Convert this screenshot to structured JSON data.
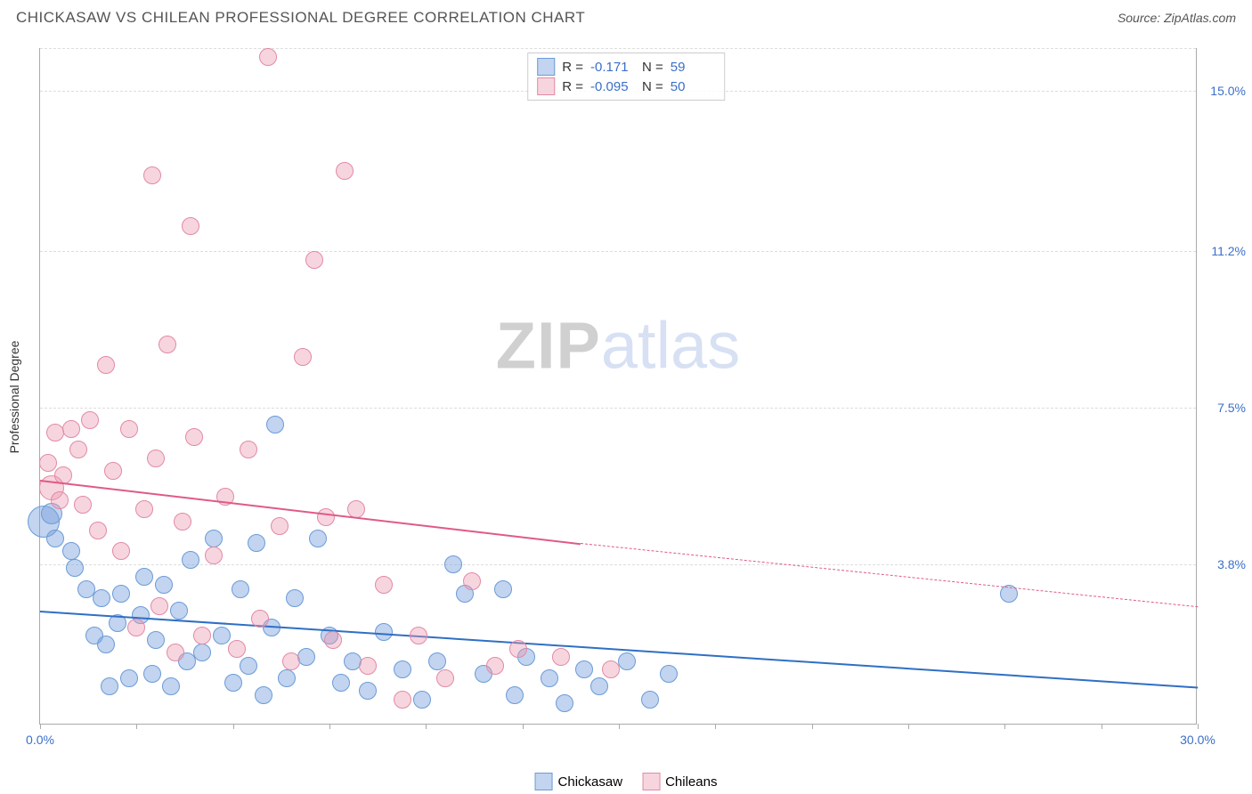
{
  "header": {
    "title": "CHICKASAW VS CHILEAN PROFESSIONAL DEGREE CORRELATION CHART",
    "source_prefix": "Source: ",
    "source_name": "ZipAtlas.com"
  },
  "watermark": {
    "zip": "ZIP",
    "atlas": "atlas"
  },
  "axes": {
    "ylabel": "Professional Degree",
    "xlim": [
      0,
      30
    ],
    "ylim": [
      0,
      16
    ],
    "x_ticks": [
      0,
      2.5,
      5,
      7.5,
      10,
      12.5,
      15,
      17.5,
      20,
      22.5,
      25,
      27.5,
      30
    ],
    "x_tick_labels": {
      "0": "0.0%",
      "30": "30.0%"
    },
    "y_grid": [
      {
        "v": 3.8,
        "label": "3.8%"
      },
      {
        "v": 7.5,
        "label": "7.5%"
      },
      {
        "v": 11.2,
        "label": "11.2%"
      },
      {
        "v": 15.0,
        "label": "15.0%"
      }
    ],
    "grid_color": "#dddddd",
    "border_color": "#aaaaaa"
  },
  "series": [
    {
      "name": "Chickasaw",
      "color_fill": "rgba(120,160,220,0.45)",
      "color_stroke": "#6b9bd8",
      "trend_color": "#2f6fc4",
      "stats": {
        "R": "-0.171",
        "N": "59"
      },
      "trend_solid": {
        "x1": 0,
        "y1": 2.7,
        "x2": 30,
        "y2": 0.9
      },
      "marker_radius": 10,
      "points": [
        [
          0.1,
          4.8,
          18
        ],
        [
          0.3,
          5.0,
          12
        ],
        [
          0.4,
          4.4,
          10
        ],
        [
          0.8,
          4.1,
          10
        ],
        [
          0.9,
          3.7,
          10
        ],
        [
          1.2,
          3.2,
          10
        ],
        [
          1.4,
          2.1,
          10
        ],
        [
          1.6,
          3.0,
          10
        ],
        [
          1.7,
          1.9,
          10
        ],
        [
          1.8,
          0.9,
          10
        ],
        [
          2.0,
          2.4,
          10
        ],
        [
          2.1,
          3.1,
          10
        ],
        [
          2.3,
          1.1,
          10
        ],
        [
          2.6,
          2.6,
          10
        ],
        [
          2.7,
          3.5,
          10
        ],
        [
          2.9,
          1.2,
          10
        ],
        [
          3.0,
          2.0,
          10
        ],
        [
          3.2,
          3.3,
          10
        ],
        [
          3.4,
          0.9,
          10
        ],
        [
          3.6,
          2.7,
          10
        ],
        [
          3.8,
          1.5,
          10
        ],
        [
          3.9,
          3.9,
          10
        ],
        [
          4.2,
          1.7,
          10
        ],
        [
          4.5,
          4.4,
          10
        ],
        [
          4.7,
          2.1,
          10
        ],
        [
          5.0,
          1.0,
          10
        ],
        [
          5.2,
          3.2,
          10
        ],
        [
          5.4,
          1.4,
          10
        ],
        [
          5.6,
          4.3,
          10
        ],
        [
          5.8,
          0.7,
          10
        ],
        [
          6.0,
          2.3,
          10
        ],
        [
          6.1,
          7.1,
          10
        ],
        [
          6.4,
          1.1,
          10
        ],
        [
          6.6,
          3.0,
          10
        ],
        [
          6.9,
          1.6,
          10
        ],
        [
          7.2,
          4.4,
          10
        ],
        [
          7.5,
          2.1,
          10
        ],
        [
          7.8,
          1.0,
          10
        ],
        [
          8.1,
          1.5,
          10
        ],
        [
          8.5,
          0.8,
          10
        ],
        [
          8.9,
          2.2,
          10
        ],
        [
          9.4,
          1.3,
          10
        ],
        [
          9.9,
          0.6,
          10
        ],
        [
          10.3,
          1.5,
          10
        ],
        [
          10.7,
          3.8,
          10
        ],
        [
          11.0,
          3.1,
          10
        ],
        [
          11.5,
          1.2,
          10
        ],
        [
          12.0,
          3.2,
          10
        ],
        [
          12.3,
          0.7,
          10
        ],
        [
          12.6,
          1.6,
          10
        ],
        [
          13.2,
          1.1,
          10
        ],
        [
          13.6,
          0.5,
          10
        ],
        [
          14.1,
          1.3,
          10
        ],
        [
          14.5,
          0.9,
          10
        ],
        [
          15.2,
          1.5,
          10
        ],
        [
          15.8,
          0.6,
          10
        ],
        [
          16.3,
          1.2,
          10
        ],
        [
          25.1,
          3.1,
          10
        ]
      ]
    },
    {
      "name": "Chileans",
      "color_fill": "rgba(235,150,175,0.40)",
      "color_stroke": "#e28aa5",
      "trend_color": "#e05a87",
      "stats": {
        "R": "-0.095",
        "N": "50"
      },
      "trend_solid": {
        "x1": 0,
        "y1": 5.8,
        "x2": 14,
        "y2": 4.3
      },
      "trend_dash": {
        "x1": 14,
        "y1": 4.3,
        "x2": 30,
        "y2": 2.8
      },
      "marker_radius": 10,
      "points": [
        [
          0.2,
          6.2,
          10
        ],
        [
          0.3,
          5.6,
          14
        ],
        [
          0.4,
          6.9,
          10
        ],
        [
          0.5,
          5.3,
          10
        ],
        [
          0.6,
          5.9,
          10
        ],
        [
          0.8,
          7.0,
          10
        ],
        [
          1.0,
          6.5,
          10
        ],
        [
          1.1,
          5.2,
          10
        ],
        [
          1.3,
          7.2,
          10
        ],
        [
          1.5,
          4.6,
          10
        ],
        [
          1.7,
          8.5,
          10
        ],
        [
          1.9,
          6.0,
          10
        ],
        [
          2.1,
          4.1,
          10
        ],
        [
          2.3,
          7.0,
          10
        ],
        [
          2.5,
          2.3,
          10
        ],
        [
          2.7,
          5.1,
          10
        ],
        [
          2.9,
          13.0,
          10
        ],
        [
          3.0,
          6.3,
          10
        ],
        [
          3.1,
          2.8,
          10
        ],
        [
          3.3,
          9.0,
          10
        ],
        [
          3.5,
          1.7,
          10
        ],
        [
          3.7,
          4.8,
          10
        ],
        [
          3.9,
          11.8,
          10
        ],
        [
          4.0,
          6.8,
          10
        ],
        [
          4.2,
          2.1,
          10
        ],
        [
          4.5,
          4.0,
          10
        ],
        [
          4.8,
          5.4,
          10
        ],
        [
          5.1,
          1.8,
          10
        ],
        [
          5.4,
          6.5,
          10
        ],
        [
          5.7,
          2.5,
          10
        ],
        [
          5.9,
          15.8,
          10
        ],
        [
          6.2,
          4.7,
          10
        ],
        [
          6.5,
          1.5,
          10
        ],
        [
          6.8,
          8.7,
          10
        ],
        [
          7.1,
          11.0,
          10
        ],
        [
          7.4,
          4.9,
          10
        ],
        [
          7.6,
          2.0,
          10
        ],
        [
          7.9,
          13.1,
          10
        ],
        [
          8.2,
          5.1,
          10
        ],
        [
          8.5,
          1.4,
          10
        ],
        [
          8.9,
          3.3,
          10
        ],
        [
          9.4,
          0.6,
          10
        ],
        [
          9.8,
          2.1,
          10
        ],
        [
          10.5,
          1.1,
          10
        ],
        [
          11.2,
          3.4,
          10
        ],
        [
          11.8,
          1.4,
          10
        ],
        [
          12.4,
          1.8,
          10
        ],
        [
          13.5,
          1.6,
          10
        ],
        [
          14.8,
          1.3,
          10
        ]
      ]
    }
  ],
  "legend_labels": {
    "R_prefix": "R =",
    "N_prefix": "N ="
  },
  "bottom_legend": {
    "series1": "Chickasaw",
    "series2": "Chileans"
  }
}
